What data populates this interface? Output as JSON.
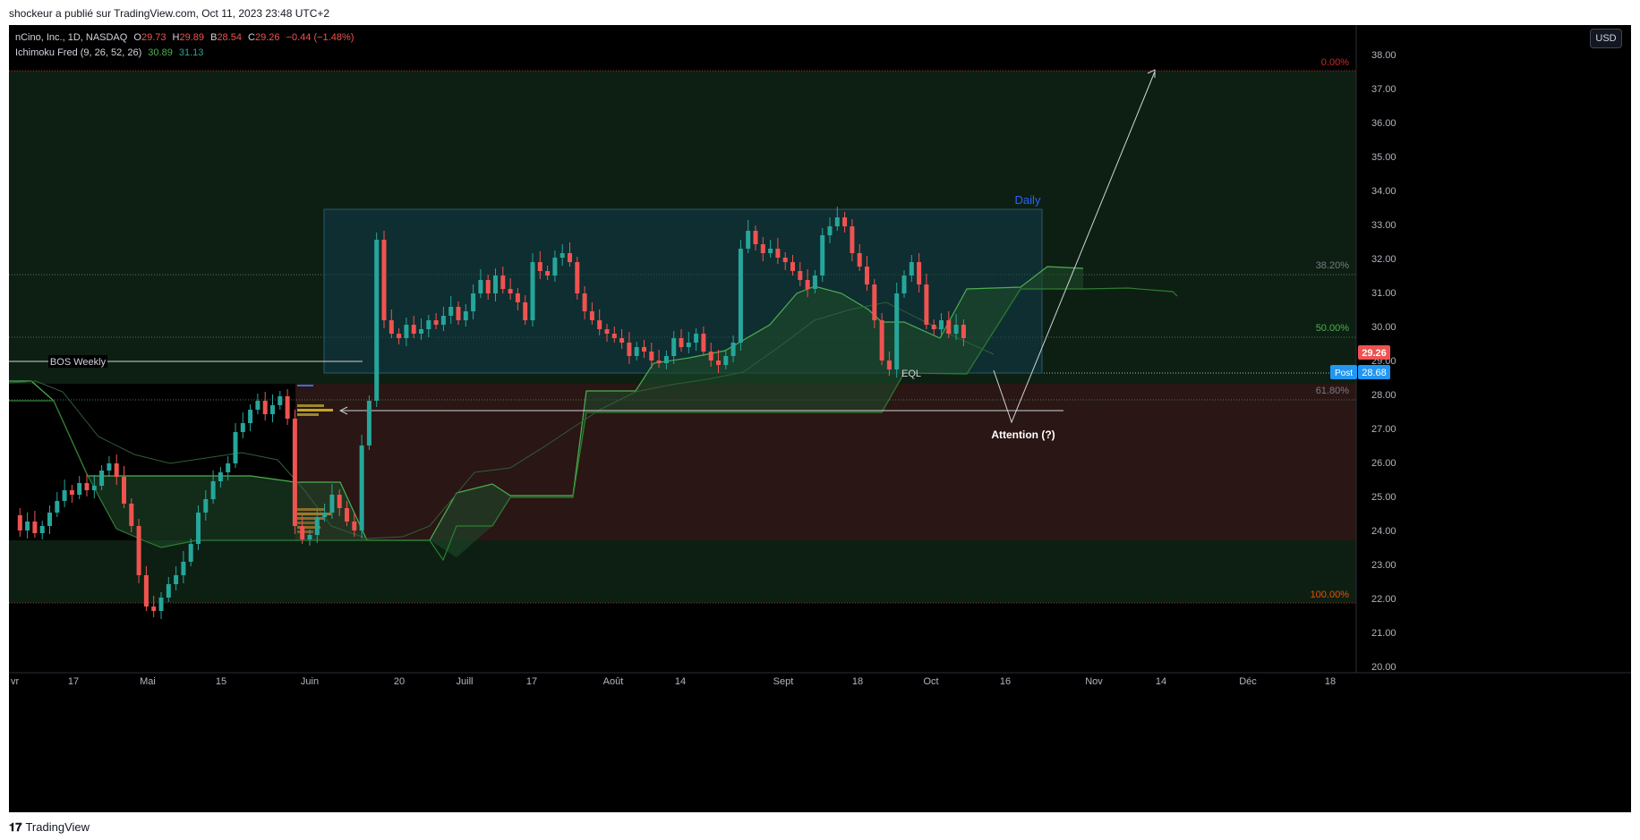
{
  "header": {
    "publisher_line": "shockeur a publié sur TradingView.com, Oct 11, 2023 23:48 UTC+2"
  },
  "legend": {
    "symbol": "nCino, Inc., 1D, NASDAQ",
    "o_label": "O",
    "o": "29.73",
    "h_label": "H",
    "h": "29.89",
    "b_label": "B",
    "b": "28.54",
    "c_label": "C",
    "c": "29.26",
    "change": "−0.44 (−1.48%)",
    "indicator": "Ichimoku Fred (9, 26, 52, 26)",
    "ind_v1": "30.89",
    "ind_v2": "31.13"
  },
  "currency_button": "USD",
  "price_axis": {
    "ticks": [
      "38.00",
      "37.00",
      "36.00",
      "35.00",
      "34.00",
      "33.00",
      "32.00",
      "31.00",
      "30.00",
      "29.00",
      "28.00",
      "27.00",
      "26.00",
      "25.00",
      "24.00",
      "23.00",
      "22.00",
      "21.00",
      "20.00"
    ]
  },
  "time_axis": {
    "ticks": [
      "vr",
      "17",
      "Mai",
      "15",
      "Juin",
      "20",
      "Juill",
      "17",
      "Août",
      "14",
      "Sept",
      "18",
      "Oct",
      "16",
      "Nov",
      "14",
      "Déc",
      "18"
    ]
  },
  "price_labels": {
    "last": "29.26",
    "post_label": "Post",
    "post": "28.68"
  },
  "fib": {
    "l0": "0.00%",
    "l382": "38.20%",
    "l50": "50.00%",
    "l618": "61.80%",
    "l100": "100.00%"
  },
  "annotations": {
    "daily": "Daily",
    "bos": "BOS Weekly",
    "eql": "EQL",
    "attention": "Attention (?)"
  },
  "colors": {
    "up": "#26a69a",
    "down": "#ef5350",
    "background": "#000000",
    "text": "#b2b5be"
  },
  "footer": {
    "brand": "TradingView"
  }
}
